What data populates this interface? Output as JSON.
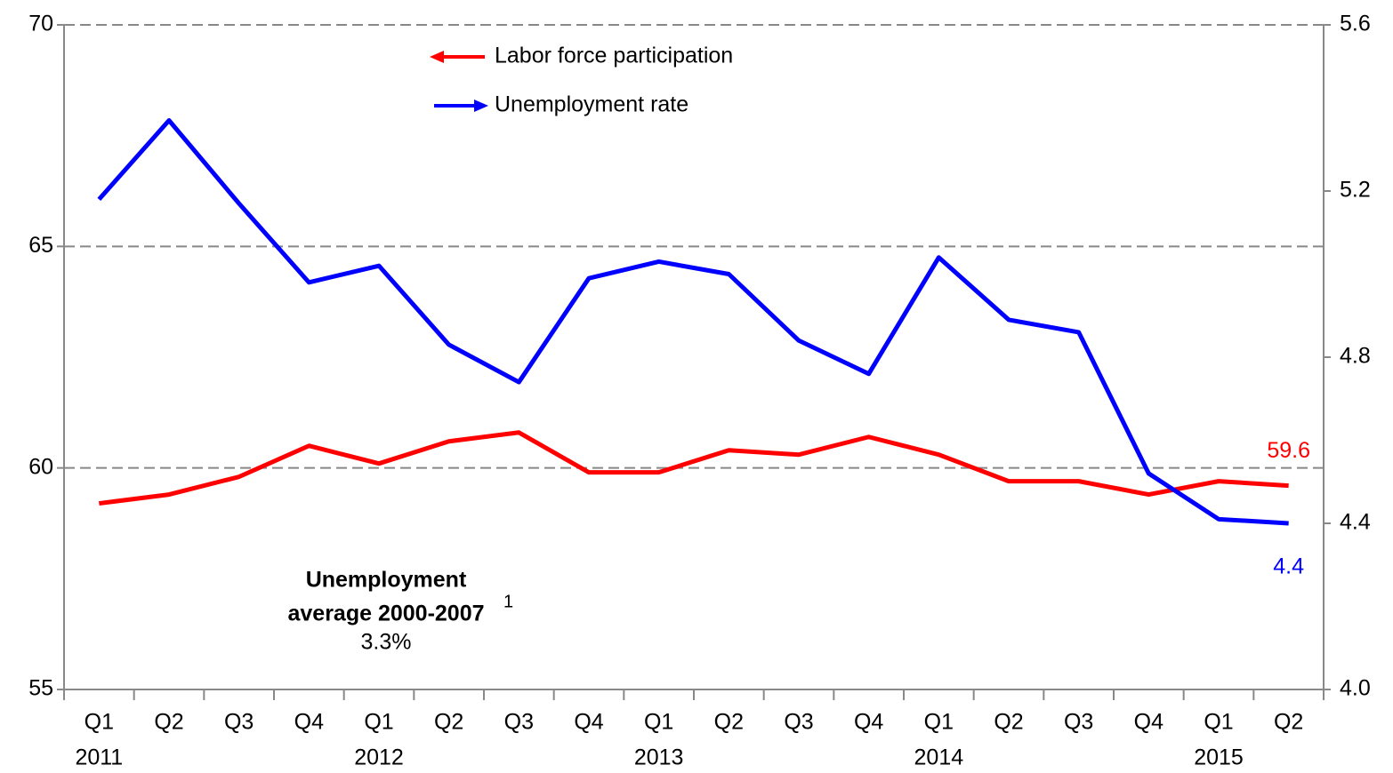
{
  "chart_data": {
    "type": "line",
    "categories": [
      "Q1",
      "Q2",
      "Q3",
      "Q4",
      "Q1",
      "Q2",
      "Q3",
      "Q4",
      "Q1",
      "Q2",
      "Q3",
      "Q4",
      "Q1",
      "Q2",
      "Q3",
      "Q4",
      "Q1",
      "Q2"
    ],
    "year_labels": [
      "2011",
      null,
      null,
      null,
      "2012",
      null,
      null,
      null,
      "2013",
      null,
      null,
      null,
      "2014",
      null,
      null,
      null,
      "2015",
      null
    ],
    "series": [
      {
        "name": "Labor force participation",
        "color": "#ff0000",
        "values": [
          59.2,
          59.4,
          59.8,
          60.5,
          60.1,
          60.6,
          60.8,
          59.9,
          59.9,
          60.4,
          60.3,
          60.7,
          60.3,
          59.7,
          59.7,
          59.4,
          59.7,
          59.6
        ],
        "value_labels": [
          null,
          null,
          null,
          null,
          null,
          null,
          null,
          null,
          null,
          null,
          null,
          null,
          null,
          null,
          null,
          null,
          null,
          "59.6"
        ]
      },
      {
        "name": "Unemployment rate",
        "color": "#0000ff",
        "axis": "y2",
        "values": [
          5.18,
          5.37,
          5.17,
          4.98,
          5.02,
          4.83,
          4.74,
          4.99,
          5.03,
          5.0,
          4.84,
          4.76,
          5.04,
          4.89,
          4.86,
          4.52,
          4.41,
          4.4
        ],
        "value_labels": [
          null,
          null,
          null,
          null,
          null,
          null,
          null,
          null,
          null,
          null,
          null,
          null,
          null,
          null,
          null,
          null,
          null,
          "4.4"
        ]
      }
    ],
    "ylim": [
      55,
      70
    ],
    "yticks": [
      55,
      60,
      65,
      70
    ],
    "y2lim": [
      4.0,
      5.6
    ],
    "y2ticks": [
      {
        "value": 4.0,
        "label": "4.0"
      },
      4.4,
      4.8,
      5.2,
      5.6
    ],
    "grid": true,
    "annotation": {
      "line1": "Unemployment",
      "line2": "average 2000-2007",
      "superscript": "1",
      "value_label": "3.3%",
      "color": "#0000ff"
    }
  }
}
